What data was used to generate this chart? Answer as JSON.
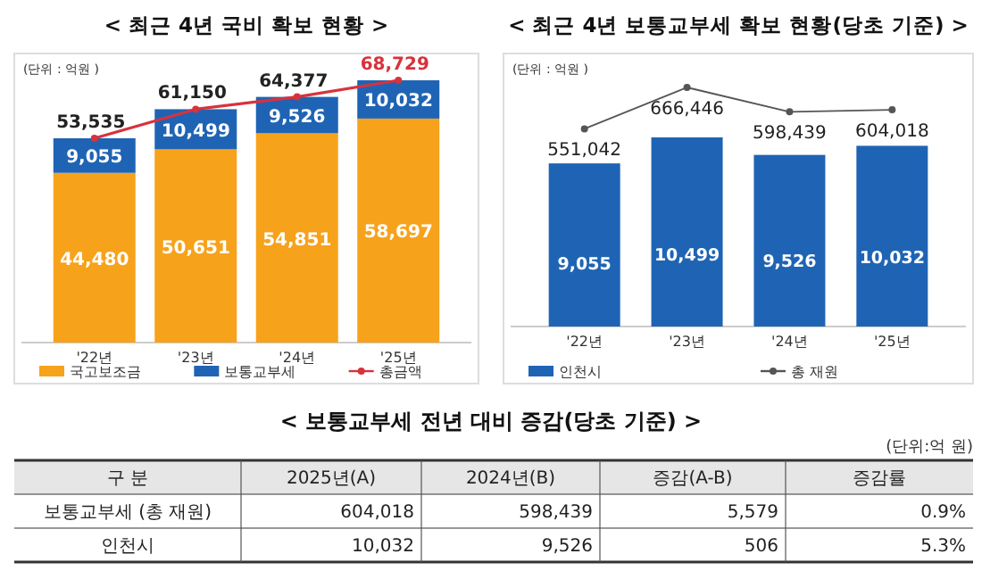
{
  "chart_data": [
    {
      "type": "bar",
      "title": "< 최근 4년 국비 확보 현황 >",
      "annotations": [
        "(단위 : 억원 )"
      ],
      "categories": [
        "'22년",
        "'23년",
        "'24년",
        "'25년"
      ],
      "stacked": true,
      "legend": "bottom",
      "marker": "circle",
      "tick_labels": "x",
      "series": [
        {
          "name": "국고보조금",
          "color": "#f7a21b",
          "values": [
            44480,
            50651,
            54851,
            58697
          ],
          "value_labels": [
            "44,480",
            "50,651",
            "54,851",
            "58,697"
          ]
        },
        {
          "name": "보통교부세",
          "color": "#1f64b4",
          "values": [
            9055,
            10499,
            9526,
            10032
          ],
          "value_labels": [
            "9,055",
            "10,499",
            "9,526",
            "10,032"
          ]
        },
        {
          "name": "총금액",
          "type": "line",
          "color": "#d8323c",
          "values": [
            53535,
            61150,
            64377,
            68729
          ],
          "value_labels": [
            "53,535",
            "61,150",
            "64,377",
            "68,729"
          ]
        }
      ]
    },
    {
      "type": "bar",
      "annotations": [
        "(단위 : 억원 )"
      ],
      "categories": [
        "'22년",
        "'23년",
        "'24년",
        "'25년"
      ],
      "legend": "bottom",
      "tick_labels": "x",
      "series": [
        {
          "name": "인천시",
          "color": "#1f64b4",
          "values": [
            9055,
            10499,
            9526,
            10032
          ],
          "value_labels": [
            "9,055",
            "10,499",
            "9,526",
            "10,032"
          ]
        }
      ]
    },
    {
      "type": "line",
      "title": "< 최근 4년 보통교부세 확보 현황(당초 기준) >",
      "categories": [
        null,
        null,
        null,
        null
      ],
      "legend": "bottom",
      "marker": "circle",
      "tick_labels": false,
      "series": [
        {
          "name": "총 재원",
          "color": "#555555",
          "values": [
            551042,
            666446,
            598439,
            604018
          ],
          "value_labels": [
            "551,042",
            "666,446",
            "598,439",
            "604,018"
          ]
        }
      ]
    },
    {
      "type": "other",
      "title": "< 보통교부세 전년 대비 증감(당초 기준) >",
      "annotations": [
        "(단위:억 원)"
      ],
      "categories": [
        "구 분",
        "2025년(A)",
        "2024년(B)",
        "증감(A-B)",
        "증감률"
      ],
      "y_categories": [
        "보통교부세 (총 재원)",
        "인천시"
      ],
      "cell_labels": [
        [
          "604,018",
          "598,439",
          "5,579",
          "0.9%"
        ],
        [
          "10,032",
          "9,526",
          "506",
          "5.3%"
        ]
      ]
    }
  ]
}
